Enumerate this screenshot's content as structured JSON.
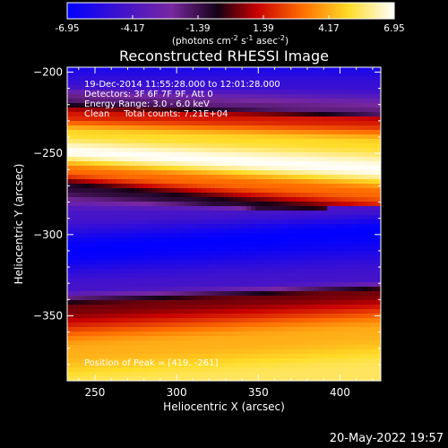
{
  "chart_data": {
    "type": "heatmap",
    "title": "Reconstructed RHESSI Image",
    "xlabel": "Heliocentric X (arcsec)",
    "ylabel": "Heliocentric Y (arcsec)",
    "xlim": [
      233,
      425
    ],
    "ylim": [
      -390,
      -197
    ],
    "xticks": [
      250,
      300,
      350,
      400
    ],
    "yticks": [
      -200,
      -250,
      -300,
      -350
    ],
    "colorbar": {
      "range": [
        -6.95,
        6.95
      ],
      "ticks": [
        "-6.95",
        "-4.17",
        "-1.39",
        "1.39",
        "4.17",
        "6.95"
      ],
      "unit_prefix": "(photons cm",
      "unit_sup1": "-2",
      "unit_mid": " s",
      "unit_sup2": "-1",
      "unit_mid2": " asec",
      "unit_sup3": "-2",
      "unit_suffix": ")"
    },
    "annotations": [
      "19-Dec-2014 11:55:28.000 to 12:01:28.000",
      "Detectors: 3F 6F 7F 9F, Att 0",
      "Energy Range: 3.0 - 6.0 keV",
      "Clean     Total counts: 7.21E+04"
    ],
    "peak_annotation": "Position of Peak = [419, -261]",
    "peak": [
      419,
      -261
    ],
    "bands": [
      {
        "y_at_x_min": -395,
        "y_at_x_max": -383,
        "value": 5.5
      },
      {
        "y_at_x_min": -372,
        "y_at_x_max": -360,
        "value": 4.2
      },
      {
        "y_at_x_min": -345,
        "y_at_x_max": -335,
        "value": 0.3
      },
      {
        "y_at_x_min": -333,
        "y_at_x_max": -328,
        "value": -4.5
      },
      {
        "y_at_x_min": -310,
        "y_at_x_max": -297,
        "value": -6.9
      },
      {
        "y_at_x_min": -288,
        "y_at_x_max": -283,
        "value": -4.4
      },
      {
        "y_at_x_min": -271,
        "y_at_x_max": -292,
        "value": -1.0
      },
      {
        "y_at_x_min": -261,
        "y_at_x_max": -275,
        "value": 3.0
      },
      {
        "y_at_x_min": -249,
        "y_at_x_max": -260,
        "value": 6.9
      },
      {
        "y_at_x_min": -238,
        "y_at_x_max": -245,
        "value": 5.0
      },
      {
        "y_at_x_min": -226,
        "y_at_x_max": -230,
        "value": 1.5
      },
      {
        "y_at_x_min": -216,
        "y_at_x_max": -225,
        "value": -2.0
      },
      {
        "y_at_x_min": -207,
        "y_at_x_max": -208,
        "value": -5.0
      },
      {
        "y_at_x_min": -197,
        "y_at_x_max": -197,
        "value": -6.0
      }
    ]
  },
  "footer": {
    "date": "20-May-2022 19:57"
  }
}
